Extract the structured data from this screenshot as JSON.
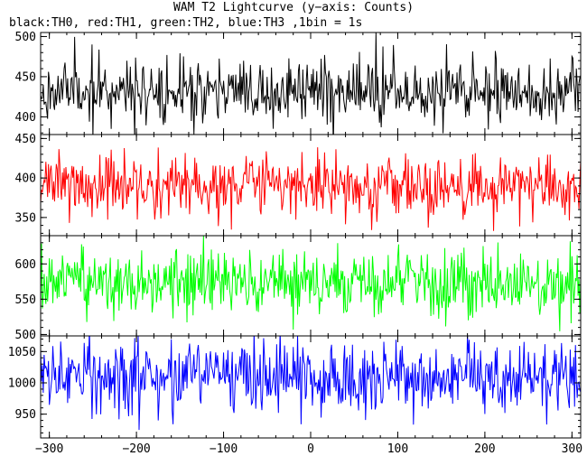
{
  "chart_data": {
    "type": "line",
    "title": "WAM T2 Lightcurve (y−axis: Counts)",
    "subtitle": "black:TH0, red:TH1, green:TH2, blue:TH3 ,1bin = 1s",
    "xlim": [
      -310,
      310
    ],
    "x_ticks": [
      "−300",
      "−200",
      "−100",
      "0",
      "100",
      "200",
      "300"
    ],
    "x_tick_values": [
      -300,
      -200,
      -100,
      0,
      100,
      200,
      300
    ],
    "bin_seconds": 1,
    "panels": [
      {
        "series": "TH0",
        "color": "#000000",
        "ylim": [
          378,
          505
        ],
        "y_ticks": [
          "400",
          "450",
          "500"
        ],
        "y_tick_values": [
          400,
          450,
          500
        ],
        "mean": 432,
        "std": 19,
        "seed": 11
      },
      {
        "series": "TH1",
        "color": "#ff0000",
        "ylim": [
          327,
          455
        ],
        "y_ticks": [
          "350",
          "400",
          "450"
        ],
        "y_tick_values": [
          350,
          400,
          450
        ],
        "mean": 390,
        "std": 19,
        "seed": 23
      },
      {
        "series": "TH2",
        "color": "#00ff00",
        "ylim": [
          498,
          640
        ],
        "y_ticks": [
          "500",
          "550",
          "600"
        ],
        "y_tick_values": [
          500,
          550,
          600
        ],
        "mean": 572,
        "std": 23,
        "seed": 37
      },
      {
        "series": "TH3",
        "color": "#0000ff",
        "ylim": [
          912,
          1075
        ],
        "y_ticks": [
          "950",
          "1000",
          "1050"
        ],
        "y_tick_values": [
          950,
          1000,
          1050
        ],
        "mean": 1010,
        "std": 30,
        "seed": 53
      }
    ]
  }
}
